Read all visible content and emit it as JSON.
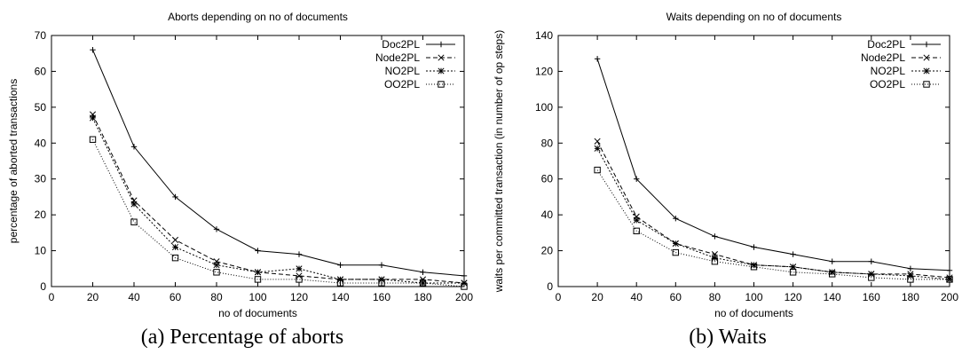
{
  "chart_data": [
    {
      "type": "line",
      "title": "Aborts depending on no of documents",
      "xlabel": "no of documents",
      "ylabel": "percentage of aborted transactions",
      "xlim": [
        0,
        200
      ],
      "ylim": [
        0,
        70
      ],
      "xticks": [
        0,
        20,
        40,
        60,
        80,
        100,
        120,
        140,
        160,
        180,
        200
      ],
      "yticks": [
        0,
        10,
        20,
        30,
        40,
        50,
        60,
        70
      ],
      "grid": false,
      "legend_position": "top-right",
      "x": [
        20,
        40,
        60,
        80,
        100,
        120,
        140,
        160,
        180,
        200
      ],
      "series": [
        {
          "name": "Doc2PL",
          "values": [
            66,
            39,
            25,
            16,
            10,
            9,
            6,
            6,
            4,
            3
          ],
          "marker": "plus",
          "dash": "solid"
        },
        {
          "name": "Node2PL",
          "values": [
            48,
            24,
            13,
            7,
            4,
            3,
            2,
            2,
            2,
            1
          ],
          "marker": "cross",
          "dash": "dashed"
        },
        {
          "name": "NO2PL",
          "values": [
            47,
            23,
            11,
            6,
            4,
            5,
            2,
            2,
            1,
            1
          ],
          "marker": "star",
          "dash": "short-dotted"
        },
        {
          "name": "OO2PL",
          "values": [
            41,
            18,
            8,
            4,
            2,
            2,
            1,
            1,
            1,
            0
          ],
          "marker": "square",
          "dash": "dotted"
        }
      ],
      "caption": "(a) Percentage of aborts"
    },
    {
      "type": "line",
      "title": "Waits depending on no of documents",
      "xlabel": "no of documents",
      "ylabel": "waits per committed transaction (in number of op steps)",
      "xlim": [
        0,
        200
      ],
      "ylim": [
        0,
        140
      ],
      "xticks": [
        0,
        20,
        40,
        60,
        80,
        100,
        120,
        140,
        160,
        180,
        200
      ],
      "yticks": [
        0,
        20,
        40,
        60,
        80,
        100,
        120,
        140
      ],
      "grid": false,
      "legend_position": "top-right",
      "x": [
        20,
        40,
        60,
        80,
        100,
        120,
        140,
        160,
        180,
        200
      ],
      "series": [
        {
          "name": "Doc2PL",
          "values": [
            127,
            60,
            38,
            28,
            22,
            18,
            14,
            14,
            10,
            9
          ],
          "marker": "plus",
          "dash": "solid"
        },
        {
          "name": "Node2PL",
          "values": [
            81,
            39,
            24,
            18,
            12,
            11,
            8,
            7,
            7,
            5
          ],
          "marker": "cross",
          "dash": "dashed"
        },
        {
          "name": "NO2PL",
          "values": [
            77,
            37,
            24,
            16,
            12,
            11,
            8,
            7,
            6,
            4
          ],
          "marker": "star",
          "dash": "short-dotted"
        },
        {
          "name": "OO2PL",
          "values": [
            65,
            31,
            19,
            14,
            11,
            8,
            7,
            5,
            4,
            4
          ],
          "marker": "square",
          "dash": "dotted"
        }
      ],
      "caption": "(b) Waits"
    }
  ]
}
